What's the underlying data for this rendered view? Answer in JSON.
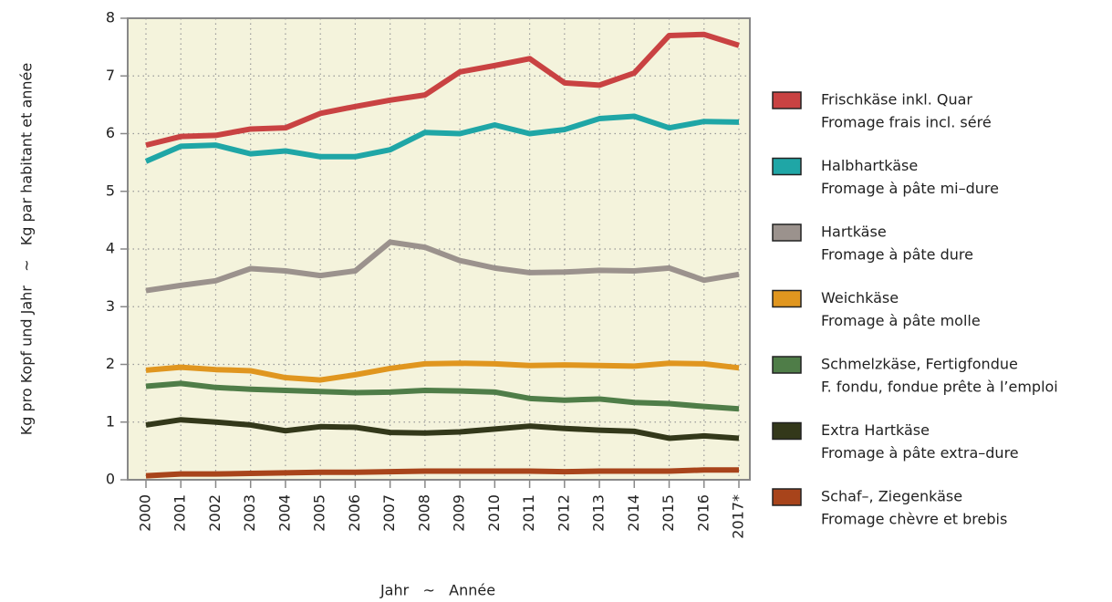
{
  "chart_data": {
    "type": "line",
    "y_label": "Kg pro Kopf und Jahr   ~   Kg par habitant et année",
    "x_label": "Jahr   ~   Année",
    "categories": [
      "2000",
      "2001",
      "2002",
      "2003",
      "2004",
      "2005",
      "2006",
      "2007",
      "2008",
      "2009",
      "2010",
      "2011",
      "2012",
      "2013",
      "2014",
      "2015",
      "2016",
      "2017*"
    ],
    "ylim": [
      0,
      8
    ],
    "yticks": [
      0,
      1,
      2,
      3,
      4,
      5,
      6,
      7,
      8
    ],
    "grid": true,
    "series": [
      {
        "name": [
          "Frischkäse inkl. Quar",
          "Fromage frais incl. séré"
        ],
        "color": "#c94242",
        "values": [
          5.8,
          5.95,
          5.97,
          6.08,
          6.1,
          6.35,
          6.47,
          6.58,
          6.67,
          7.07,
          7.18,
          7.3,
          6.88,
          6.84,
          7.05,
          7.7,
          7.72,
          7.53
        ]
      },
      {
        "name": [
          "Halbhartkäse",
          "Fromage à pâte mi–dure"
        ],
        "color": "#1fa6a6",
        "values": [
          5.52,
          5.78,
          5.8,
          5.65,
          5.7,
          5.6,
          5.6,
          5.72,
          6.02,
          6.0,
          6.15,
          6.0,
          6.07,
          6.26,
          6.3,
          6.1,
          6.21,
          6.2
        ]
      },
      {
        "name": [
          "Hartkäse",
          "Fromage à pâte dure"
        ],
        "color": "#9b928d",
        "values": [
          3.28,
          3.37,
          3.45,
          3.66,
          3.62,
          3.54,
          3.62,
          4.12,
          4.03,
          3.8,
          3.67,
          3.59,
          3.6,
          3.63,
          3.62,
          3.67,
          3.46,
          3.56
        ]
      },
      {
        "name": [
          "Weichkäse",
          "Fromage à pâte molle"
        ],
        "color": "#e0961f",
        "values": [
          1.9,
          1.95,
          1.91,
          1.89,
          1.77,
          1.73,
          1.82,
          1.93,
          2.01,
          2.02,
          2.01,
          1.98,
          1.99,
          1.98,
          1.97,
          2.02,
          2.01,
          1.94
        ]
      },
      {
        "name": [
          "Schmelzkäse, Fertigfondue",
          "F. fondu, fondue prête à l’emploi"
        ],
        "color": "#4f7d48",
        "values": [
          1.62,
          1.67,
          1.6,
          1.57,
          1.55,
          1.53,
          1.51,
          1.52,
          1.55,
          1.54,
          1.52,
          1.41,
          1.38,
          1.4,
          1.34,
          1.32,
          1.27,
          1.23
        ]
      },
      {
        "name": [
          "Extra Hartkäse",
          "Fromage à pâte extra–dure"
        ],
        "color": "#33381a",
        "values": [
          0.95,
          1.04,
          1.0,
          0.95,
          0.85,
          0.92,
          0.91,
          0.82,
          0.81,
          0.83,
          0.88,
          0.93,
          0.89,
          0.86,
          0.84,
          0.72,
          0.76,
          0.72
        ]
      },
      {
        "name": [
          "Schaf–, Ziegenkäse",
          "Fromage chèvre et brebis"
        ],
        "color": "#a8441b",
        "values": [
          0.07,
          0.1,
          0.1,
          0.11,
          0.12,
          0.13,
          0.13,
          0.14,
          0.15,
          0.15,
          0.15,
          0.15,
          0.14,
          0.15,
          0.15,
          0.15,
          0.17,
          0.17
        ]
      }
    ]
  }
}
